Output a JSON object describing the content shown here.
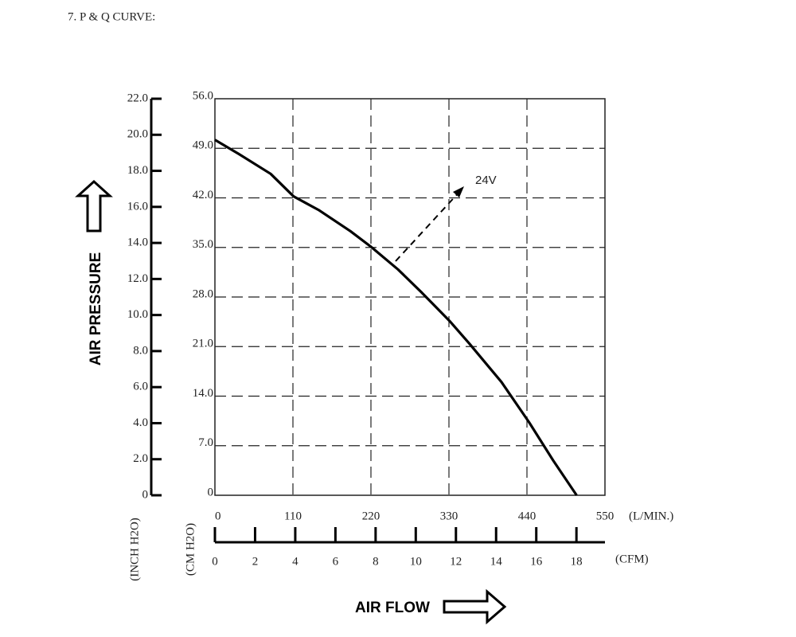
{
  "chart_data": {
    "type": "line",
    "title": "7. P & Q CURVE:",
    "y_title": "AIR PRESSURE",
    "x_title": "AIR FLOW",
    "y_unit": "(CM H2O)",
    "y2_unit": "(INCH H2O)",
    "x_unit": "(L/MIN.)",
    "x2_unit": "(CFM)",
    "annotation": "24V",
    "color": "#000000",
    "grid": true,
    "x": [
      0,
      33.7,
      78.6,
      111,
      146,
      191,
      220,
      258,
      292,
      331,
      359,
      404,
      443,
      477,
      510
    ],
    "values": [
      50.2,
      48.2,
      45.4,
      42.2,
      40.3,
      37.3,
      35.1,
      31.9,
      28.6,
      24.6,
      21.4,
      16.0,
      10.3,
      4.9,
      0
    ],
    "xlim": [
      0,
      550
    ],
    "xticks": [
      0,
      110,
      220,
      330,
      440,
      550
    ],
    "x2lim": [
      0,
      19.42
    ],
    "x2ticks": [
      0,
      2,
      4,
      6,
      8,
      10,
      12,
      14,
      16,
      18
    ],
    "ylim": [
      0,
      56
    ],
    "yticks": [
      0,
      {
        "value": 7,
        "label": "7.0"
      },
      {
        "value": 14,
        "label": "14.0"
      },
      {
        "value": 21,
        "label": "21.0"
      },
      {
        "value": 28,
        "label": "28.0"
      },
      {
        "value": 35,
        "label": "35.0"
      },
      {
        "value": 42,
        "label": "42.0"
      },
      {
        "value": 49,
        "label": "49.0"
      },
      {
        "value": 56,
        "label": "56.0"
      }
    ],
    "y2lim": [
      0,
      22
    ],
    "y2ticks": [
      0,
      {
        "value": 2,
        "label": "2.0"
      },
      {
        "value": 4,
        "label": "4.0"
      },
      {
        "value": 6,
        "label": "6.0"
      },
      {
        "value": 8,
        "label": "8.0"
      },
      {
        "value": 10,
        "label": "10.0"
      },
      {
        "value": 12,
        "label": "12.0"
      },
      {
        "value": 14,
        "label": "14.0"
      },
      {
        "value": 16,
        "label": "16.0"
      },
      {
        "value": 18,
        "label": "18.0"
      },
      {
        "value": 20,
        "label": "20.0"
      },
      {
        "value": 22,
        "label": "22.0"
      }
    ]
  }
}
